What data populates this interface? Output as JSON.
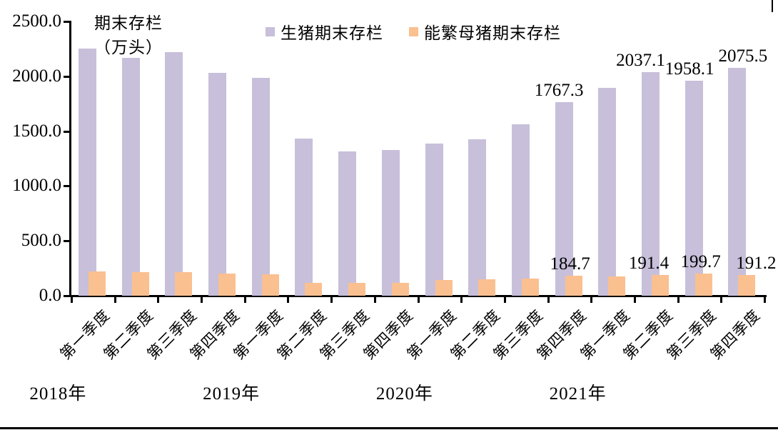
{
  "chart_data": {
    "type": "bar",
    "axis_title_lines": [
      "期末存栏",
      "（万头）"
    ],
    "y_axis": {
      "min": 0,
      "max": 2500,
      "step": 500,
      "tick_labels": [
        "0.0",
        "500.0",
        "1000.0",
        "1500.0",
        "2000.0",
        "2500.0"
      ]
    },
    "years": [
      "2018年",
      "2019年",
      "2020年",
      "2021年"
    ],
    "quarters": [
      "第一季度",
      "第二季度",
      "第三季度",
      "第四季度"
    ],
    "legend": [
      {
        "label": "生猪期末存栏",
        "color": "#C8BFDA"
      },
      {
        "label": "能繁母猪期末存栏",
        "color": "#FAC090"
      }
    ],
    "series": [
      {
        "name": "生猪期末存栏",
        "color": "#C8BFDA",
        "values": [
          2255,
          2165,
          2220,
          2030,
          1985,
          1430,
          1318,
          1330,
          1388,
          1427,
          1560,
          1767.3,
          1893,
          2037.1,
          1958.1,
          2075.5
        ]
      },
      {
        "name": "能繁母猪期末存栏",
        "color": "#FAC090",
        "values": [
          220,
          217,
          217,
          204,
          196,
          115,
          115,
          117,
          140,
          148,
          158,
          184.7,
          178,
          191.4,
          199.7,
          191.2
        ]
      }
    ],
    "data_labels": [
      {
        "series": 0,
        "index": 11,
        "text": "1767.3",
        "dx": -7
      },
      {
        "series": 0,
        "index": 13,
        "text": "2037.1",
        "dx": -14
      },
      {
        "series": 0,
        "index": 14,
        "text": "1958.1",
        "dx": -6
      },
      {
        "series": 0,
        "index": 15,
        "text": "2075.5",
        "dx": 8
      },
      {
        "series": 1,
        "index": 11,
        "text": "184.7",
        "dx": -5
      },
      {
        "series": 1,
        "index": 13,
        "text": "191.4",
        "dx": -16
      },
      {
        "series": 1,
        "index": 14,
        "text": "199.7",
        "dx": -4
      },
      {
        "series": 1,
        "index": 15,
        "text": "191.2",
        "dx": 13
      }
    ],
    "grid": "off",
    "legend_position": "top"
  }
}
